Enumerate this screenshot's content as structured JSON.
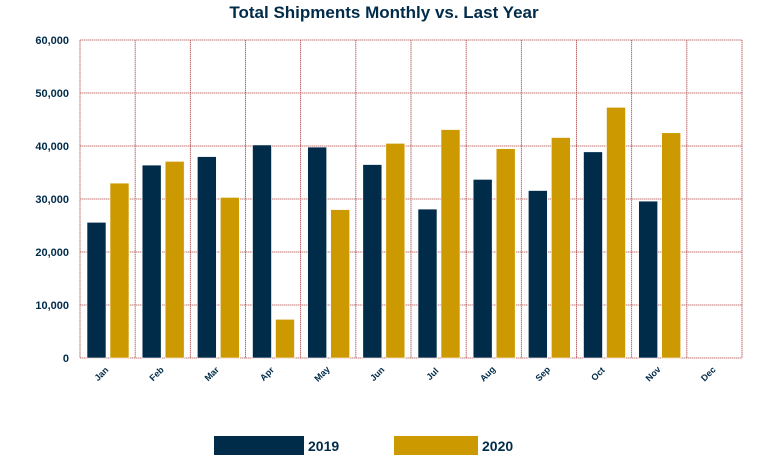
{
  "chart_data": {
    "type": "bar",
    "title": "Total Shipments Monthly vs. Last Year",
    "xlabel": "",
    "ylabel": "",
    "categories": [
      "Jan",
      "Feb",
      "Mar",
      "Apr",
      "May",
      "Jun",
      "Jul",
      "Aug",
      "Sep",
      "Oct",
      "Nov",
      "Dec"
    ],
    "series": [
      {
        "name": "2019",
        "color": "#002b49",
        "values": [
          25600,
          36400,
          38000,
          40200,
          39800,
          36500,
          28100,
          33700,
          31600,
          38900,
          29600,
          null
        ]
      },
      {
        "name": "2020",
        "color": "#cc9900",
        "values": [
          33000,
          37100,
          30300,
          7300,
          28000,
          40500,
          43100,
          39500,
          41600,
          47300,
          42500,
          null
        ]
      }
    ],
    "ylim": [
      0,
      60000
    ],
    "yticks": [
      "0",
      "10,000",
      "20,000",
      "30,000",
      "40,000",
      "50,000",
      "60,000"
    ],
    "grid": true,
    "grid_color": "#b04a4a",
    "legend_position": "bottom"
  }
}
